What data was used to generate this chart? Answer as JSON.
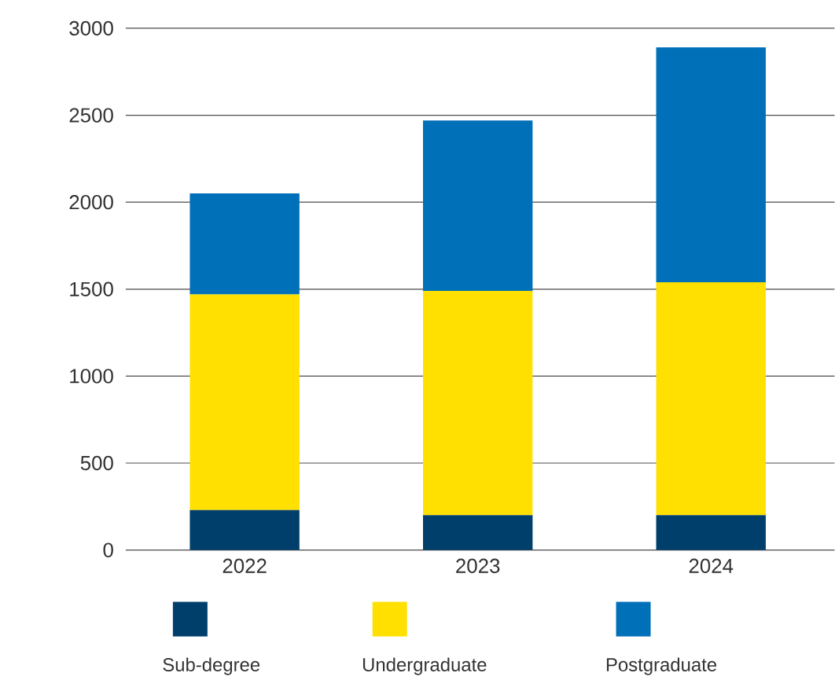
{
  "chart_data": {
    "type": "bar",
    "stacked": true,
    "categories": [
      "2022",
      "2023",
      "2024"
    ],
    "series": [
      {
        "name": "Sub-degree",
        "color": "#003f6b",
        "values": [
          230,
          200,
          200
        ]
      },
      {
        "name": "Undergraduate",
        "color": "#ffe000",
        "values": [
          1240,
          1290,
          1340
        ]
      },
      {
        "name": "Postgraduate",
        "color": "#0070b8",
        "values": [
          580,
          980,
          1350
        ]
      }
    ],
    "ylim": [
      0,
      3000
    ],
    "yticks": [
      0,
      500,
      1000,
      1500,
      2000,
      2500,
      3000
    ],
    "grid": "y",
    "legend": "bottom"
  }
}
